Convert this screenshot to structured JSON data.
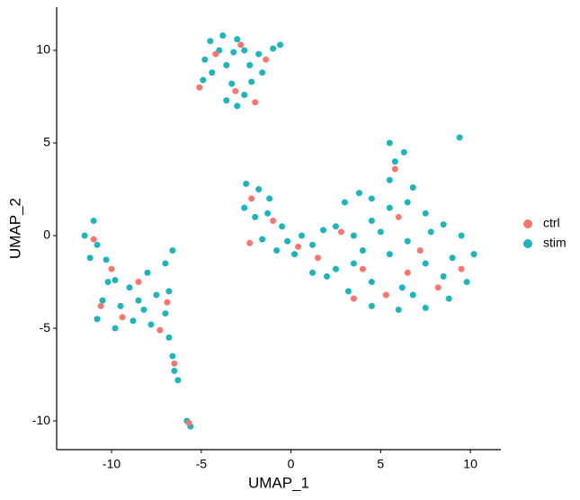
{
  "chart_data": {
    "type": "scatter",
    "x_label": "UMAP_1",
    "y_label": "UMAP_2",
    "xlim": [
      -13.06,
      11.7
    ],
    "ylim": [
      -11.55,
      12.33
    ],
    "xticks": [
      -10,
      -5,
      0,
      5,
      10
    ],
    "yticks": [
      -10,
      -5,
      0,
      5,
      10
    ],
    "grid": false,
    "legend_position": "right",
    "series": [
      {
        "name": "stim",
        "color": "#1CB5BC",
        "x": [
          -4.5,
          -3.8,
          -3.0,
          -4.0,
          -3.2,
          -4.8,
          -2.6,
          -1.8,
          -1.0,
          -0.6,
          -3.6,
          -4.4,
          -2.3,
          -3.3,
          -2.6,
          -3.6,
          -2.2,
          -4.9,
          -1.6,
          -3.0,
          -2.5,
          -1.8,
          -1.2,
          -2.6,
          -2.0,
          -1.3,
          -0.5,
          -1.6,
          -0.2,
          0.6,
          1.2,
          0.2,
          -0.8,
          1.8,
          2.5,
          3.0,
          3.8,
          4.5,
          5.5,
          5.8,
          5.5,
          6.3,
          6.8,
          9.4,
          3.5,
          4.5,
          5.5,
          6.5,
          7.5,
          8.5,
          9.5,
          10.2,
          9.8,
          8.8,
          7.5,
          6.0,
          4.5,
          3.2,
          2.5,
          3.5,
          4.5,
          5.5,
          6.5,
          7.5,
          8.5,
          6.2,
          5.0,
          7.8,
          9.0,
          4.0,
          6.8,
          2.0,
          1.2,
          -11.5,
          -11.0,
          -10.8,
          -11.2,
          -10.3,
          -9.8,
          -9.0,
          -8.0,
          -7.0,
          -6.6,
          -10.5,
          -9.5,
          -8.5,
          -7.5,
          -6.8,
          -10.8,
          -9.8,
          -8.8,
          -7.8,
          -7.0,
          -6.8,
          -6.6,
          -6.5,
          -6.3,
          -5.6,
          -5.8,
          -10.2,
          -8.2
        ],
        "values": [
          10.5,
          10.8,
          10.6,
          10.0,
          9.9,
          9.5,
          10.0,
          9.8,
          10.1,
          10.3,
          9.2,
          8.8,
          9.2,
          8.2,
          7.6,
          7.3,
          8.3,
          8.4,
          8.8,
          7.0,
          2.8,
          2.5,
          2.0,
          1.5,
          1.0,
          1.2,
          0.5,
          -0.2,
          -0.3,
          0.0,
          -0.5,
          -1.0,
          -0.8,
          0.3,
          0.5,
          1.8,
          2.3,
          2.0,
          3.0,
          4.0,
          5.0,
          4.5,
          2.6,
          5.3,
          0.0,
          0.8,
          1.5,
          1.8,
          1.2,
          0.6,
          0.0,
          -1.0,
          -2.5,
          -3.4,
          -3.9,
          -4.0,
          -3.8,
          -3.0,
          -1.8,
          -1.5,
          -2.5,
          -1.0,
          -0.3,
          -1.5,
          -2.2,
          -2.8,
          0.2,
          0.2,
          -1.2,
          -0.8,
          -3.2,
          -2.2,
          -2.0,
          0.0,
          0.8,
          -0.5,
          -1.2,
          -1.3,
          -2.4,
          -2.8,
          -2.0,
          -1.5,
          -0.8,
          -3.5,
          -3.8,
          -3.5,
          -3.2,
          -3.0,
          -4.5,
          -5.0,
          -4.6,
          -4.8,
          -4.2,
          -5.5,
          -6.5,
          -7.3,
          -7.8,
          -10.3,
          -10.0,
          -2.5,
          -4.0
        ]
      },
      {
        "name": "ctrl",
        "color": "#F8766D",
        "x": [
          -4.2,
          -2.8,
          -1.4,
          -3.1,
          -5.1,
          -2.0,
          -2.2,
          -1.0,
          -2.3,
          0.4,
          1.5,
          2.8,
          5.8,
          6.0,
          7.2,
          8.2,
          5.3,
          4.0,
          9.5,
          3.5,
          6.5,
          -11.0,
          -10.0,
          -8.5,
          -9.4,
          -6.9,
          -7.3,
          -6.5,
          -5.7,
          -10.6
        ],
        "values": [
          9.8,
          10.3,
          9.5,
          7.8,
          8.0,
          7.2,
          2.0,
          0.8,
          -0.4,
          -0.6,
          -1.2,
          0.2,
          3.6,
          1.0,
          -0.8,
          -2.8,
          -3.2,
          -1.8,
          -1.8,
          -3.4,
          -2.0,
          -0.2,
          -1.8,
          -2.5,
          -4.4,
          -3.6,
          -5.1,
          -6.9,
          -10.1,
          -3.8
        ]
      }
    ]
  }
}
